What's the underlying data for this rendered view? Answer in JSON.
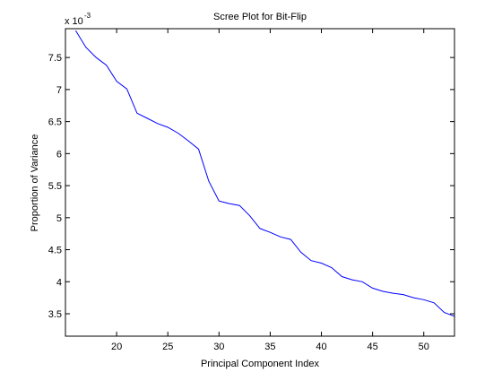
{
  "chart_data": {
    "type": "line",
    "title": "Scree Plot for Bit-Flip",
    "xlabel": "Principal Component Index",
    "ylabel": "Proportion of Variance",
    "exponent_base": "x 10",
    "exponent_power": "-3",
    "xlim": [
      15,
      53
    ],
    "ylim": [
      3.15,
      7.95
    ],
    "xticks": [
      20,
      25,
      30,
      35,
      40,
      45,
      50
    ],
    "yticks": [
      3.5,
      4,
      4.5,
      5,
      5.5,
      6,
      6.5,
      7,
      7.5
    ],
    "xtick_labels": [
      "20",
      "25",
      "30",
      "35",
      "40",
      "45",
      "50"
    ],
    "ytick_labels": [
      "3.5",
      "4",
      "4.5",
      "5",
      "5.5",
      "6",
      "6.5",
      "7",
      "7.5"
    ],
    "grid": false,
    "line_color": "#0000ff",
    "series": [
      {
        "x": [
          16,
          17,
          18,
          19,
          20,
          21,
          22,
          23,
          24,
          25,
          26,
          27,
          28,
          29,
          30,
          31,
          32,
          33,
          34,
          35,
          36,
          37,
          38,
          39,
          40,
          41,
          42,
          43,
          44,
          45,
          46,
          47,
          48,
          49,
          50,
          51,
          52,
          53
        ],
        "values": [
          7.92,
          7.66,
          7.5,
          7.38,
          7.13,
          7.01,
          6.63,
          6.55,
          6.47,
          6.41,
          6.32,
          6.2,
          6.07,
          5.57,
          5.26,
          5.22,
          5.19,
          5.03,
          4.83,
          4.77,
          4.7,
          4.66,
          4.46,
          4.33,
          4.29,
          4.22,
          4.08,
          4.03,
          4.0,
          3.9,
          3.85,
          3.82,
          3.8,
          3.75,
          3.72,
          3.67,
          3.52,
          3.46
        ]
      }
    ]
  }
}
